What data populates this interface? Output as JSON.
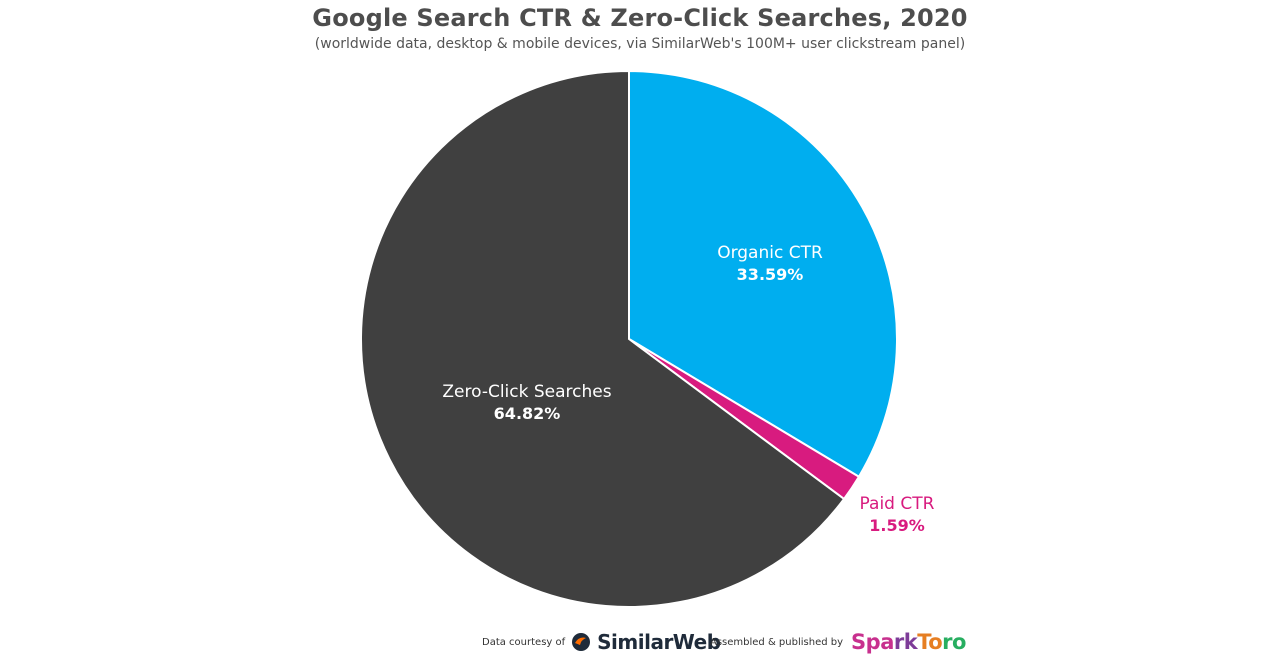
{
  "title": "Google Search CTR & Zero-Click Searches, 2020",
  "subtitle": "(worldwide data, desktop & mobile devices, via SimilarWeb's 100M+ user clickstream panel)",
  "footer": {
    "data_courtesy_label": "Data courtesy of",
    "similarweb_brand": "SimilarWeb",
    "assembled_label": "Assembled & published by",
    "sparktoro_brand_parts": [
      "Spa",
      "rk",
      "To",
      "ro"
    ]
  },
  "chart_data": {
    "type": "pie",
    "title": "Google Search CTR & Zero-Click Searches, 2020",
    "subtitle": "(worldwide data, desktop & mobile devices, via SimilarWeb's 100M+ user clickstream panel)",
    "slices": [
      {
        "label": "Organic CTR",
        "value": 33.59,
        "value_label": "33.59%",
        "color": "#00aeef",
        "label_color": "#ffffff"
      },
      {
        "label": "Paid CTR",
        "value": 1.59,
        "value_label": "1.59%",
        "color": "#d81b7f",
        "label_color": "#d81b7f"
      },
      {
        "label": "Zero-Click Searches",
        "value": 64.82,
        "value_label": "64.82%",
        "color": "#404040",
        "label_color": "#ffffff"
      }
    ],
    "start_angle": "12 o'clock",
    "direction": "clockwise",
    "legend": "none",
    "label_placement": "inside, except Paid CTR outside bottom-right"
  }
}
